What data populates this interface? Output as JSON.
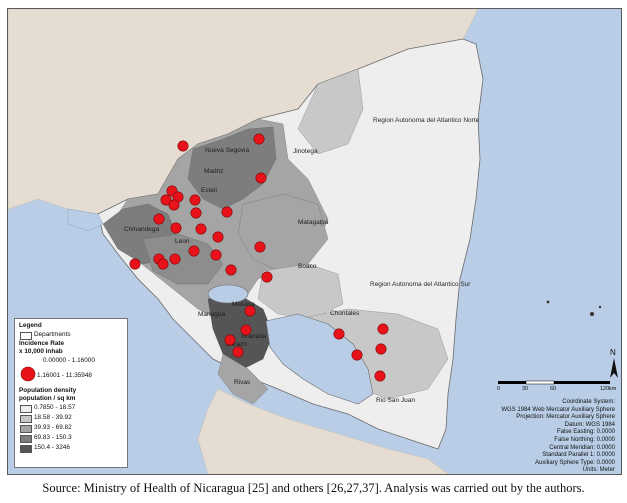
{
  "legend": {
    "title": "Legend",
    "departments_label": "Departments",
    "incidence_title_1": "Incidence Rate",
    "incidence_title_2": "x 10,000 inhab",
    "incidence_classes": [
      "0.00000 - 1.16000",
      "1.16001 - 11.35948"
    ],
    "density_title_1": "Population density",
    "density_title_2": "population / sq km",
    "density_classes": [
      {
        "label": "0.7850 - 18.57",
        "color": "#eeeeee"
      },
      {
        "label": "18.58 - 39.92",
        "color": "#c8c8c8"
      },
      {
        "label": "39.93 - 69.82",
        "color": "#a5a5a5"
      },
      {
        "label": "69.83 - 150.3",
        "color": "#7d7d7d"
      },
      {
        "label": "150.4 - 3246",
        "color": "#555555"
      }
    ]
  },
  "map_labels": {
    "nueva_segovia": "Nueva Segovia",
    "jinotega": "Jinotega",
    "madriz": "Madriz",
    "esteli": "Esteli",
    "chinandega": "Chinandega",
    "leon": "Leon",
    "matagalpa": "Matagalpa",
    "boaco": "Boaco",
    "managua": "Managua",
    "masaya": "Masaya",
    "carazo": "Carazo",
    "granada": "Granada",
    "rivas": "Rivas",
    "chontales": "Chontales",
    "rio_san_juan": "Rio San Juan",
    "raan": "Region Autonoma del Atlantico Norte",
    "raas": "Region Autonoma del Atlantico Sur"
  },
  "scale_bar": {
    "ticks": [
      "0",
      "30",
      "60",
      "120"
    ],
    "unit": "km"
  },
  "north_arrow": {
    "letter": "N"
  },
  "metadata": [
    "Coordinate System:",
    "WGS 1984 Web Mercator Auxiliary Sphere",
    "Projection: Mercator Auxiliary Sphere",
    "Datum: WGS 1984",
    "False Easting: 0.0000",
    "False Northing: 0.0000",
    "Central Meridian: 0.0000",
    "Standard Parallel 1: 0.0000",
    "Auxiliary Sphere Type: 0.0000",
    "Units: Meter"
  ],
  "caption": "Source: Ministry of Health of Nicaragua [25] and others [26,27,37]. Analysis was carried out by the authors.",
  "colors": {
    "sea": "#b9cde6",
    "land_outside": "#e8dfd4",
    "high_incidence": "#e8121b",
    "lake": "#b9cde6"
  }
}
